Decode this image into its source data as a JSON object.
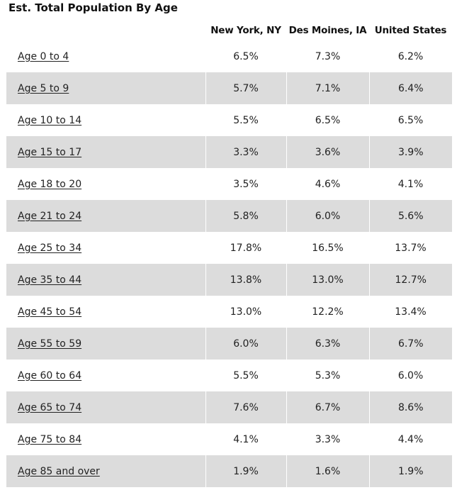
{
  "title": "Est. Total Population By Age",
  "columns": [
    "New York, NY",
    "Des Moines, IA",
    "United States"
  ],
  "rows": [
    {
      "label": "Age 0 to 4",
      "values": [
        "6.5%",
        "7.3%",
        "6.2%"
      ]
    },
    {
      "label": "Age 5 to 9",
      "values": [
        "5.7%",
        "7.1%",
        "6.4%"
      ]
    },
    {
      "label": "Age 10 to 14",
      "values": [
        "5.5%",
        "6.5%",
        "6.5%"
      ]
    },
    {
      "label": "Age 15 to 17",
      "values": [
        "3.3%",
        "3.6%",
        "3.9%"
      ]
    },
    {
      "label": "Age 18 to 20",
      "values": [
        "3.5%",
        "4.6%",
        "4.1%"
      ]
    },
    {
      "label": "Age 21 to 24",
      "values": [
        "5.8%",
        "6.0%",
        "5.6%"
      ]
    },
    {
      "label": "Age 25 to 34",
      "values": [
        "17.8%",
        "16.5%",
        "13.7%"
      ]
    },
    {
      "label": "Age 35 to 44",
      "values": [
        "13.8%",
        "13.0%",
        "12.7%"
      ]
    },
    {
      "label": "Age 45 to 54",
      "values": [
        "13.0%",
        "12.2%",
        "13.4%"
      ]
    },
    {
      "label": "Age 55 to 59",
      "values": [
        "6.0%",
        "6.3%",
        "6.7%"
      ]
    },
    {
      "label": "Age 60 to 64",
      "values": [
        "5.5%",
        "5.3%",
        "6.0%"
      ]
    },
    {
      "label": "Age 65 to 74",
      "values": [
        "7.6%",
        "6.7%",
        "8.6%"
      ]
    },
    {
      "label": "Age 75 to 84",
      "values": [
        "4.1%",
        "3.3%",
        "4.4%"
      ]
    },
    {
      "label": "Age 85 and over",
      "values": [
        "1.9%",
        "1.6%",
        "1.9%"
      ]
    }
  ],
  "colors": {
    "row_shade": "#dcdcdc",
    "text": "#222222"
  }
}
